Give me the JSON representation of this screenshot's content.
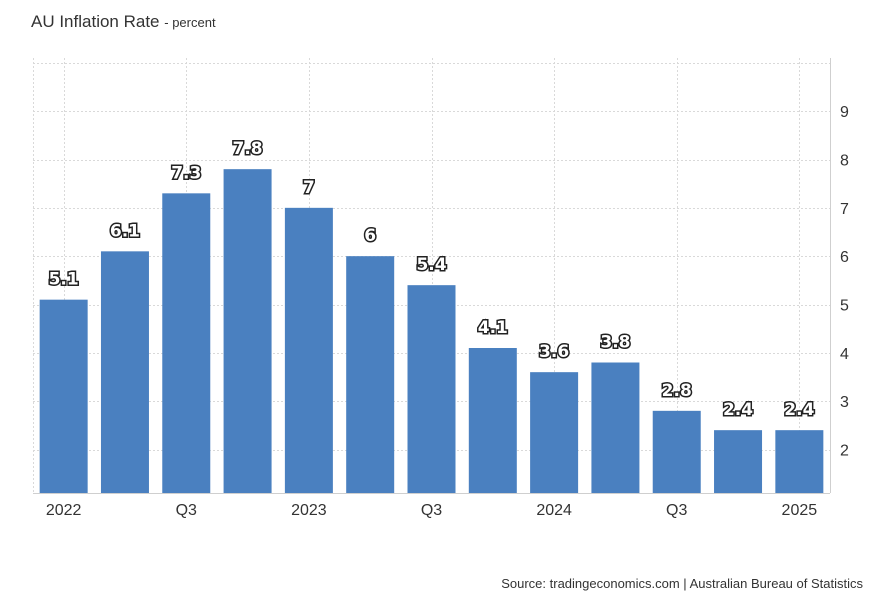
{
  "title": "AU Inflation Rate",
  "subtitle": "- percent",
  "source": "Source: tradingeconomics.com | Australian Bureau of Statistics",
  "colors": {
    "bar": "#4a80c0"
  },
  "chart_data": {
    "type": "bar",
    "title": "AU Inflation Rate",
    "ylabel": "percent",
    "xlabel": "",
    "values": [
      5.1,
      6.1,
      7.3,
      7.8,
      7,
      6,
      5.4,
      4.1,
      3.6,
      3.8,
      2.8,
      2.4,
      2.4
    ],
    "value_labels": [
      "5.1",
      "6.1",
      "7.3",
      "7.8",
      "7",
      "6",
      "5.4",
      "4.1",
      "3.6",
      "3.8",
      "2.8",
      "2.4",
      "2.4"
    ],
    "x_tick_labels": [
      {
        "index": 0,
        "label": "2022"
      },
      {
        "index": 2,
        "label": "Q3"
      },
      {
        "index": 4,
        "label": "2023"
      },
      {
        "index": 6,
        "label": "Q3"
      },
      {
        "index": 8,
        "label": "2024"
      },
      {
        "index": 10,
        "label": "Q3"
      },
      {
        "index": 12,
        "label": "2025"
      }
    ],
    "y_ticks": [
      2,
      3,
      4,
      5,
      6,
      7,
      8,
      9
    ],
    "ylim": [
      1.1,
      10.1
    ],
    "y_axis_side": "right",
    "grid": true,
    "legend": "none"
  }
}
